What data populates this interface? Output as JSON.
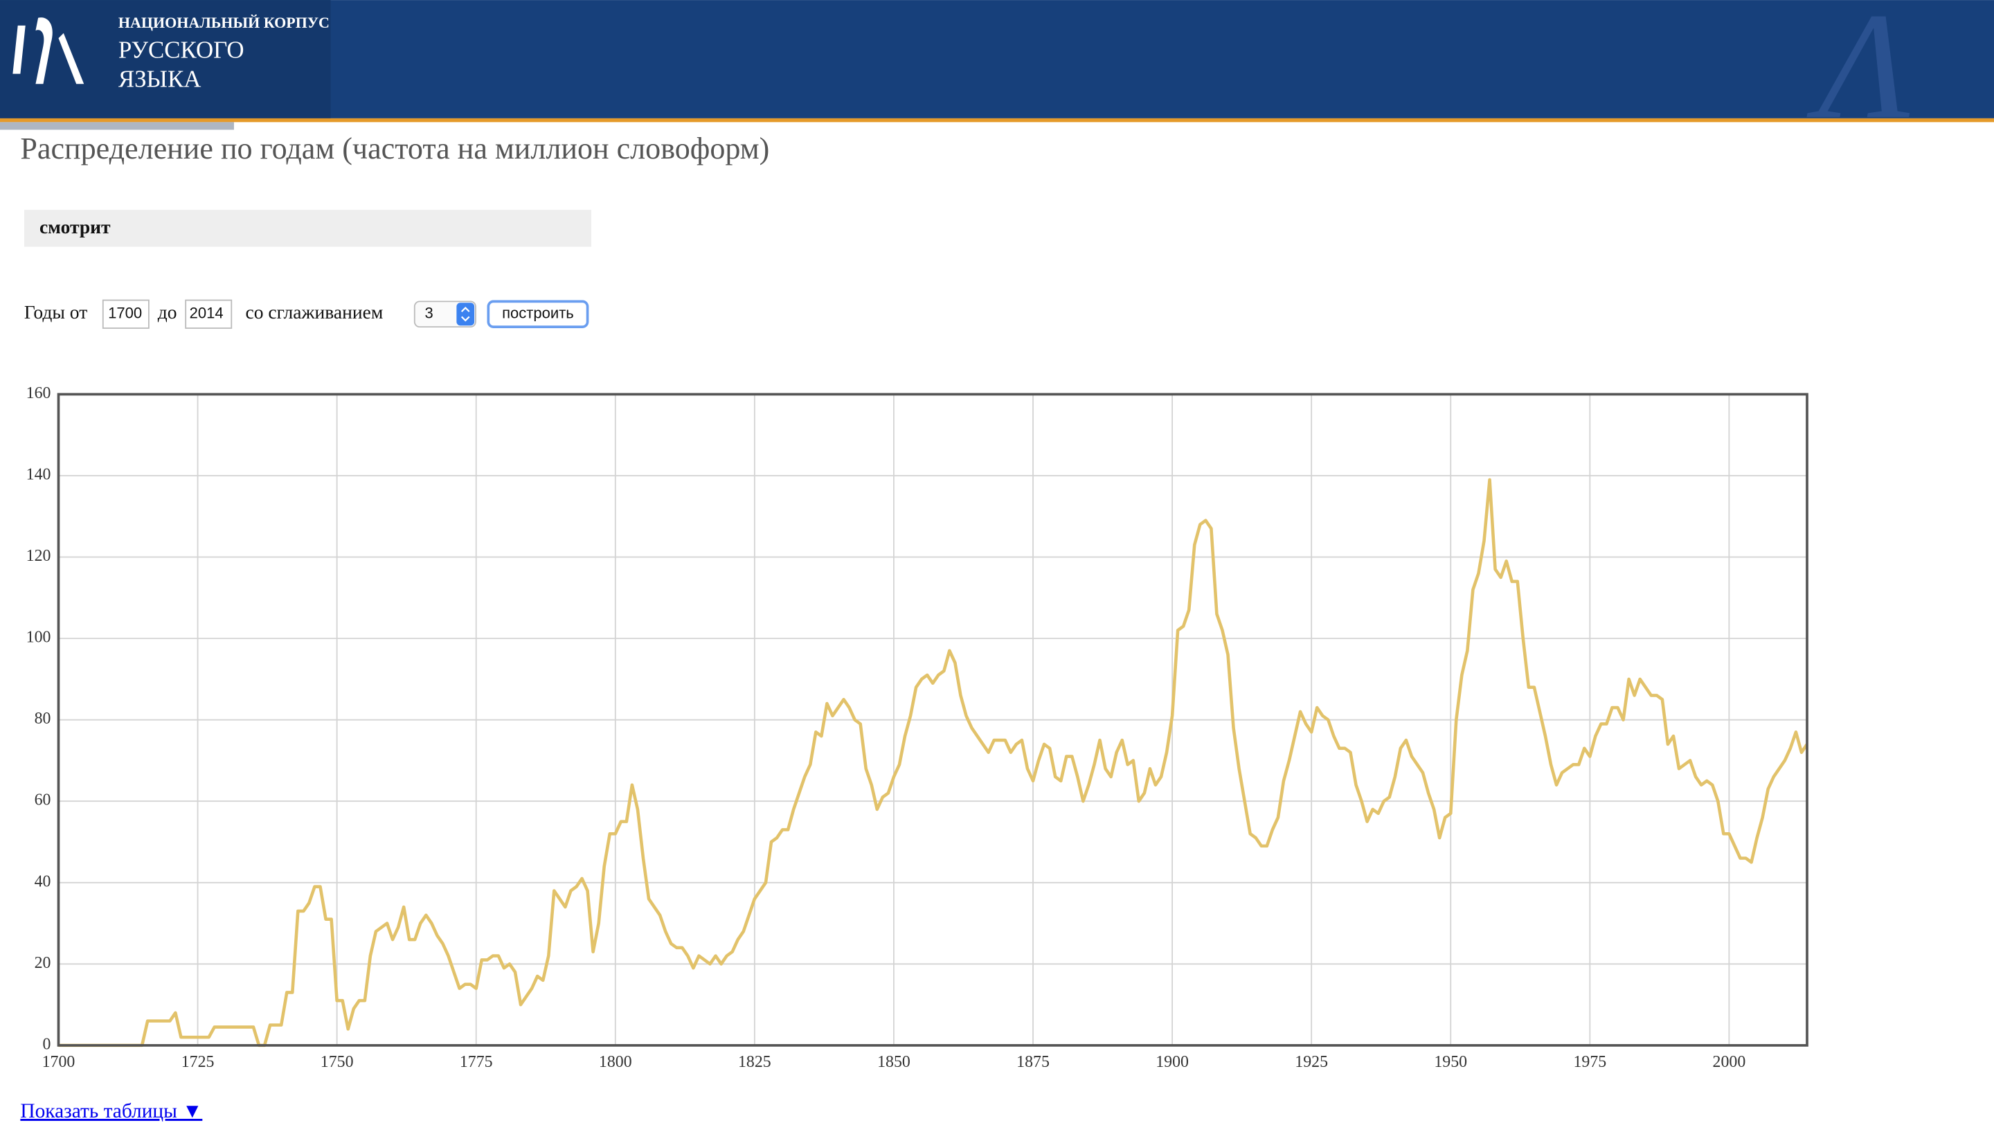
{
  "header": {
    "lines": [
      "НАЦИОНАЛЬНЫЙ КОРПУС",
      "РУССКОГО",
      "ЯЗЫКА"
    ]
  },
  "form": {
    "from_label": "Годы от",
    "from": "1700",
    "to_label": "до",
    "to": "2014",
    "smoothing_label": "со сглаживанием",
    "smoothing": "3",
    "button": "построить"
  },
  "show_tables": "Показать таблицы ▼",
  "chart_data": {
    "type": "line",
    "title": "Распределение по годам (частота на миллион словоформ)",
    "x": [
      1700,
      1701,
      1702,
      1703,
      1704,
      1705,
      1706,
      1707,
      1708,
      1709,
      1710,
      1711,
      1712,
      1713,
      1714,
      1715,
      1716,
      1717,
      1718,
      1719,
      1720,
      1721,
      1722,
      1723,
      1724,
      1725,
      1726,
      1727,
      1728,
      1729,
      1730,
      1731,
      1732,
      1733,
      1734,
      1735,
      1736,
      1737,
      1738,
      1739,
      1740,
      1741,
      1742,
      1743,
      1744,
      1745,
      1746,
      1747,
      1748,
      1749,
      1750,
      1751,
      1752,
      1753,
      1754,
      1755,
      1756,
      1757,
      1758,
      1759,
      1760,
      1761,
      1762,
      1763,
      1764,
      1765,
      1766,
      1767,
      1768,
      1769,
      1770,
      1771,
      1772,
      1773,
      1774,
      1775,
      1776,
      1777,
      1778,
      1779,
      1780,
      1781,
      1782,
      1783,
      1784,
      1785,
      1786,
      1787,
      1788,
      1789,
      1790,
      1791,
      1792,
      1793,
      1794,
      1795,
      1796,
      1797,
      1798,
      1799,
      1800,
      1801,
      1802,
      1803,
      1804,
      1805,
      1806,
      1807,
      1808,
      1809,
      1810,
      1811,
      1812,
      1813,
      1814,
      1815,
      1816,
      1817,
      1818,
      1819,
      1820,
      1821,
      1822,
      1823,
      1824,
      1825,
      1826,
      1827,
      1828,
      1829,
      1830,
      1831,
      1832,
      1833,
      1834,
      1835,
      1836,
      1837,
      1838,
      1839,
      1840,
      1841,
      1842,
      1843,
      1844,
      1845,
      1846,
      1847,
      1848,
      1849,
      1850,
      1851,
      1852,
      1853,
      1854,
      1855,
      1856,
      1857,
      1858,
      1859,
      1860,
      1861,
      1862,
      1863,
      1864,
      1865,
      1866,
      1867,
      1868,
      1869,
      1870,
      1871,
      1872,
      1873,
      1874,
      1875,
      1876,
      1877,
      1878,
      1879,
      1880,
      1881,
      1882,
      1883,
      1884,
      1885,
      1886,
      1887,
      1888,
      1889,
      1890,
      1891,
      1892,
      1893,
      1894,
      1895,
      1896,
      1897,
      1898,
      1899,
      1900,
      1901,
      1902,
      1903,
      1904,
      1905,
      1906,
      1907,
      1908,
      1909,
      1910,
      1911,
      1912,
      1913,
      1914,
      1915,
      1916,
      1917,
      1918,
      1919,
      1920,
      1921,
      1922,
      1923,
      1924,
      1925,
      1926,
      1927,
      1928,
      1929,
      1930,
      1931,
      1932,
      1933,
      1934,
      1935,
      1936,
      1937,
      1938,
      1939,
      1940,
      1941,
      1942,
      1943,
      1944,
      1945,
      1946,
      1947,
      1948,
      1949,
      1950,
      1951,
      1952,
      1953,
      1954,
      1955,
      1956,
      1957,
      1958,
      1959,
      1960,
      1961,
      1962,
      1963,
      1964,
      1965,
      1966,
      1967,
      1968,
      1969,
      1970,
      1971,
      1972,
      1973,
      1974,
      1975,
      1976,
      1977,
      1978,
      1979,
      1980,
      1981,
      1982,
      1983,
      1984,
      1985,
      1986,
      1987,
      1988,
      1989,
      1990,
      1991,
      1992,
      1993,
      1994,
      1995,
      1996,
      1997,
      1998,
      1999,
      2000,
      2001,
      2002,
      2003,
      2004,
      2005,
      2006,
      2007,
      2008,
      2009,
      2010,
      2011,
      2012,
      2013,
      2014
    ],
    "series": [
      {
        "name": "смотрит",
        "color": "#e2c26a",
        "values": [
          0,
          0,
          0,
          0,
          0,
          0,
          0,
          0,
          0,
          0,
          0,
          0,
          0,
          0,
          0,
          0,
          6,
          6,
          6,
          6,
          6,
          8,
          2,
          2,
          2,
          2,
          2,
          2,
          4.5,
          4.5,
          4.5,
          4.5,
          4.5,
          4.5,
          4.5,
          4.5,
          0,
          0,
          5,
          5,
          5,
          13,
          13,
          33,
          33,
          35,
          39,
          39,
          31,
          31,
          11,
          11,
          4,
          9,
          11,
          11,
          22,
          28,
          29,
          30,
          26,
          29,
          34,
          26,
          26,
          30,
          32,
          30,
          27,
          25,
          22,
          18,
          14,
          15,
          15,
          14,
          21,
          21,
          22,
          22,
          19,
          20,
          18,
          10,
          12,
          14,
          17,
          16,
          22,
          38,
          36,
          34,
          38,
          39,
          41,
          38,
          23,
          30,
          44,
          52,
          52,
          55,
          55,
          64,
          58,
          46,
          36,
          34,
          32,
          28,
          25,
          24,
          24,
          22,
          19,
          22,
          21,
          20,
          22,
          20,
          22,
          23,
          26,
          28,
          32,
          36,
          38,
          40,
          50,
          51,
          53,
          53,
          58,
          62,
          66,
          69,
          77,
          76,
          84,
          81,
          83,
          85,
          83,
          80,
          79,
          68,
          64,
          58,
          61,
          62,
          66,
          69,
          76,
          81,
          88,
          90,
          91,
          89,
          91,
          92,
          97,
          94,
          86,
          81,
          78,
          76,
          74,
          72,
          75,
          75,
          75,
          72,
          74,
          75,
          68,
          65,
          70,
          74,
          73,
          66,
          65,
          71,
          71,
          66,
          60,
          64,
          69,
          75,
          68,
          66,
          72,
          75,
          69,
          70,
          60,
          62,
          68,
          64,
          66,
          72,
          81,
          102,
          103,
          107,
          123,
          128,
          129,
          127,
          106,
          102,
          96,
          78,
          68,
          60,
          52,
          51,
          49,
          49,
          53,
          56,
          65,
          70,
          76,
          82,
          79,
          77,
          83,
          81,
          80,
          76,
          73,
          73,
          72,
          64,
          60,
          55,
          58,
          57,
          60,
          61,
          66,
          73,
          75,
          71,
          69,
          67,
          62,
          58,
          51,
          56,
          57,
          80,
          91,
          97,
          112,
          116,
          124,
          139,
          117,
          115,
          119,
          114,
          114,
          100,
          88,
          88,
          82,
          76,
          69,
          64,
          67,
          68,
          69,
          69,
          73,
          71,
          76,
          79,
          79,
          83,
          83,
          80,
          90,
          86,
          90,
          88,
          86,
          86,
          85,
          74,
          76,
          68,
          69,
          70,
          66,
          64,
          65,
          64,
          60,
          52,
          52,
          49,
          46,
          46,
          45,
          51,
          56,
          63,
          66,
          68,
          70,
          73,
          77,
          72,
          74
        ]
      }
    ],
    "xlim": [
      1700,
      2014
    ],
    "xticks": [
      1700,
      1725,
      1750,
      1775,
      1800,
      1825,
      1850,
      1875,
      1900,
      1925,
      1950,
      1975,
      2000
    ],
    "ylim": [
      0,
      160
    ],
    "yticks": [
      0,
      20,
      40,
      60,
      80,
      100,
      120,
      140,
      160
    ],
    "grid": true
  }
}
